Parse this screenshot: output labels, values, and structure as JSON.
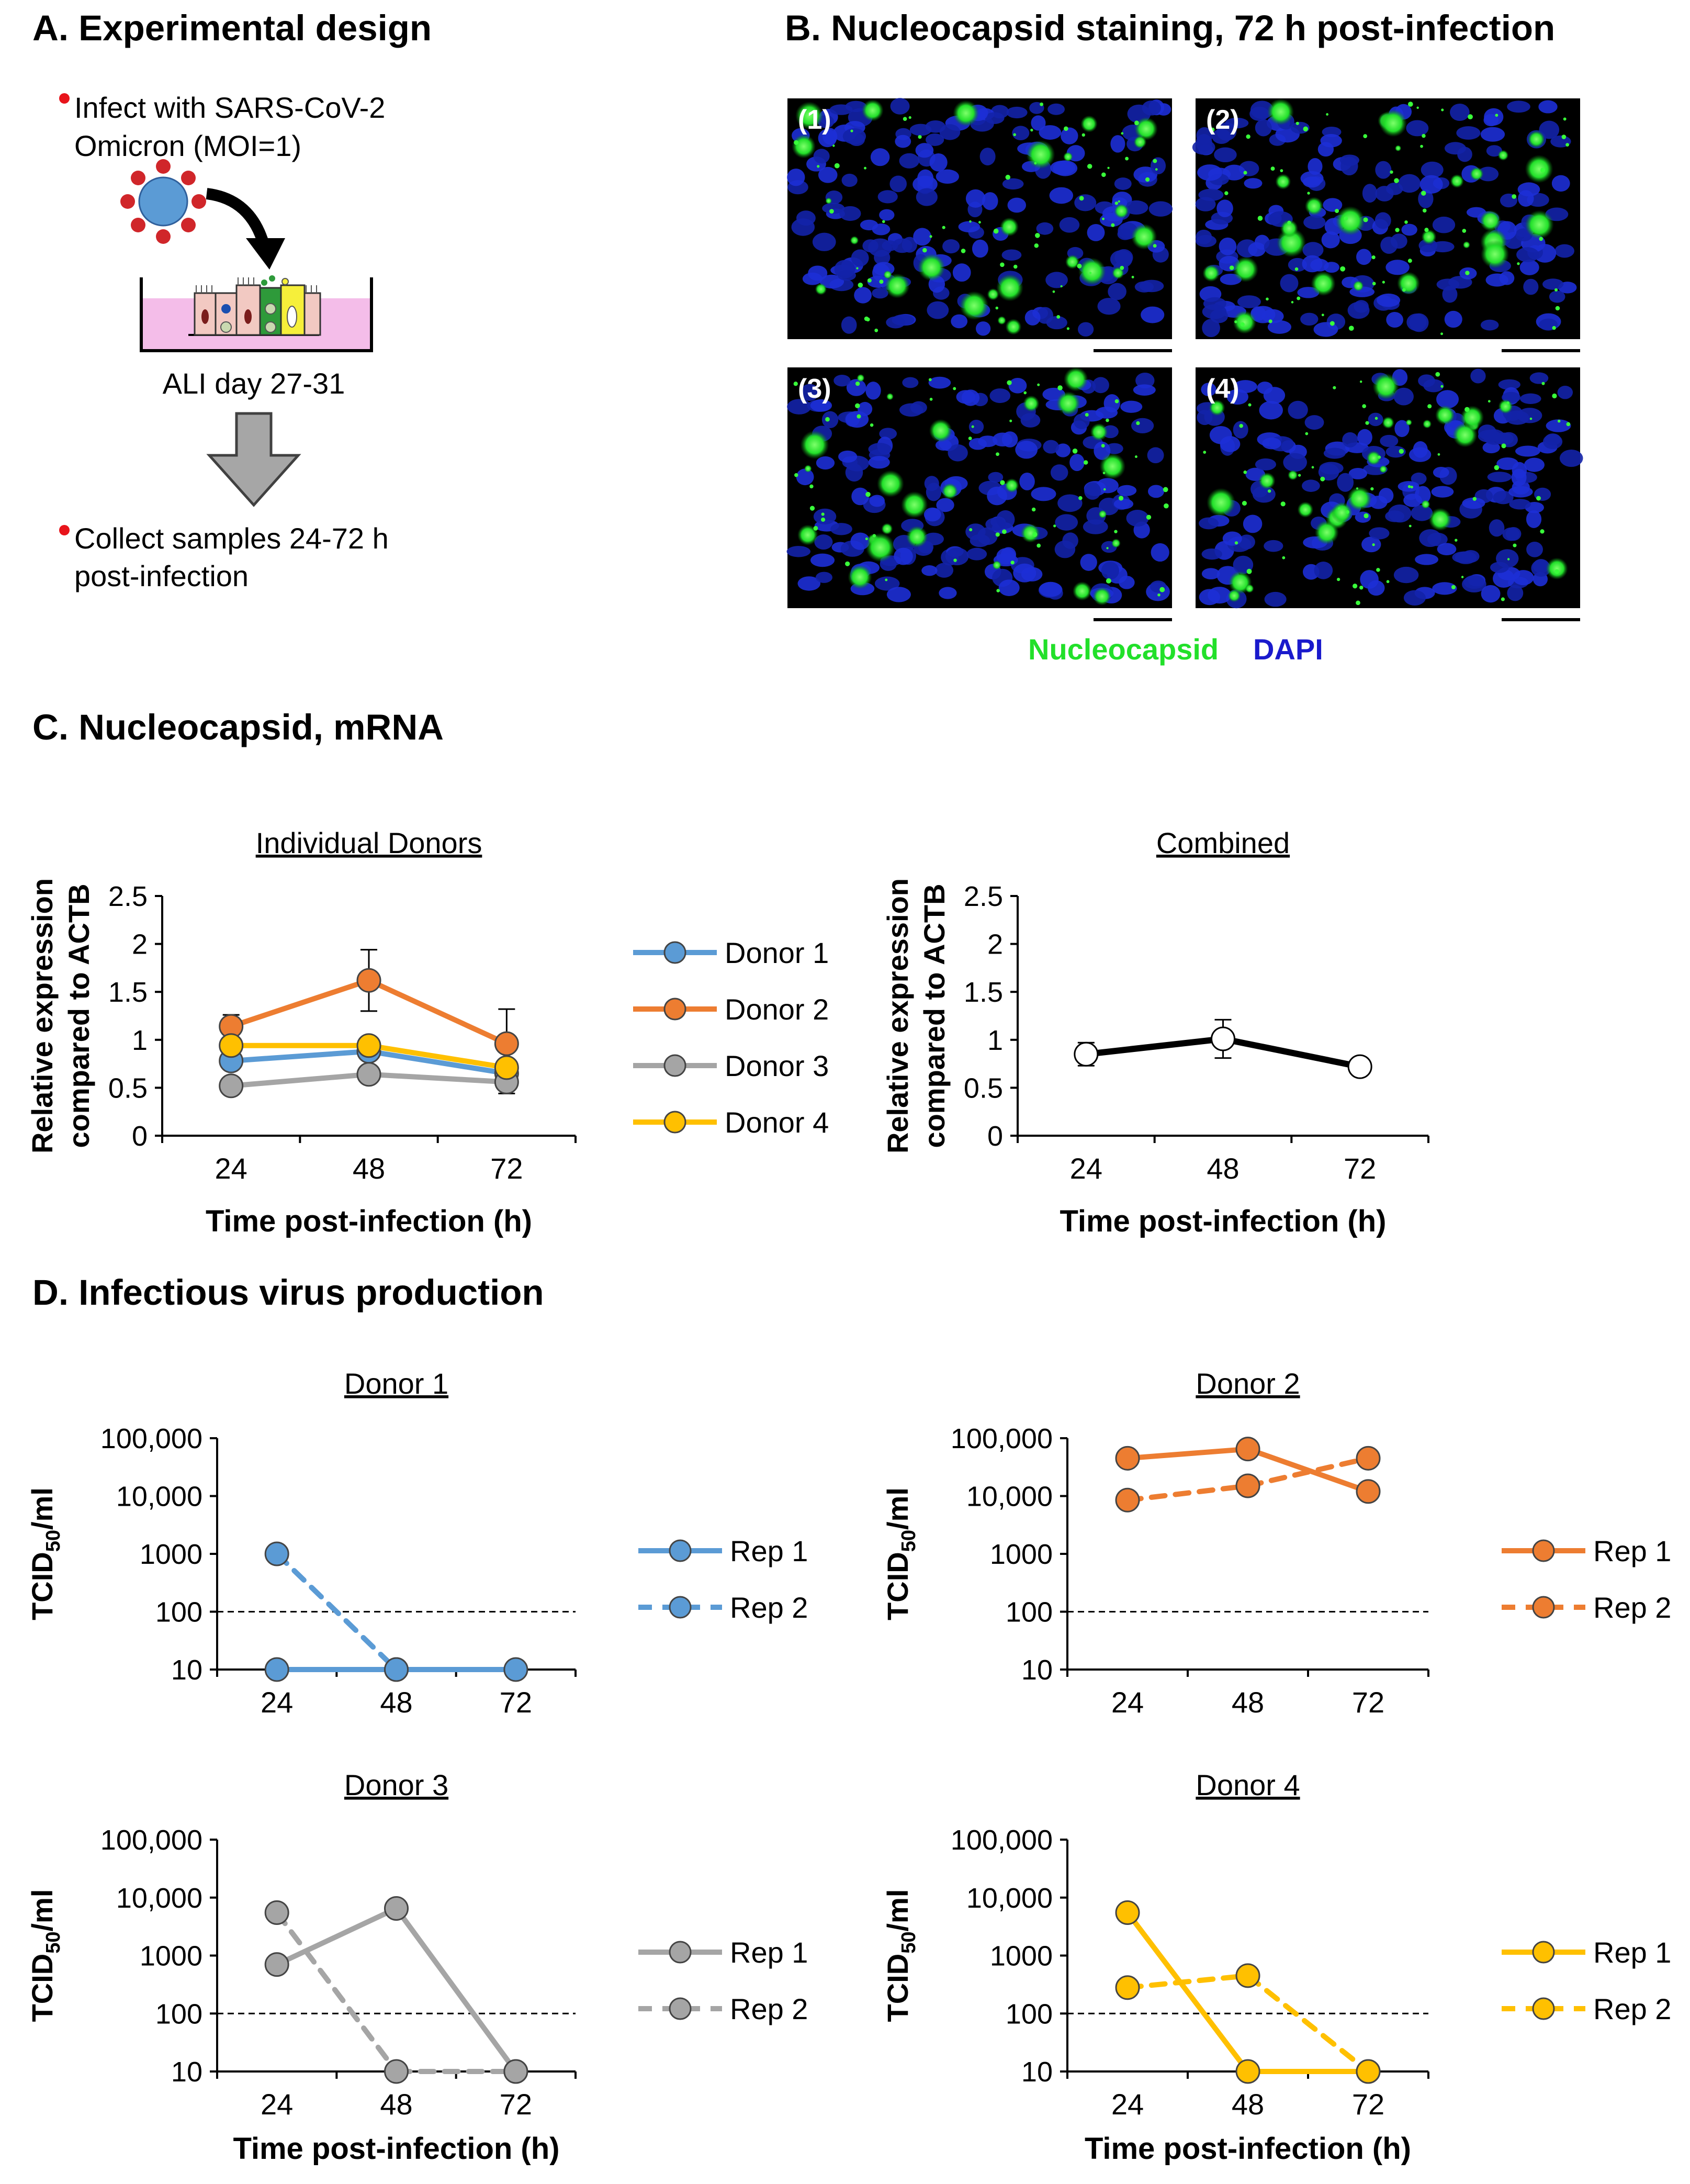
{
  "panels": {
    "a_title": "A. Experimental design",
    "b_title": "B. Nucleocapsid staining, 72 h post-infection",
    "c_title": "C. Nucleocapsid, mRNA",
    "d_title": "D. Infectious virus production"
  },
  "design": {
    "step1_line1": "Infect with SARS-CoV-2",
    "step1_line2": "Omicron (MOI=1)",
    "culture_label": "ALI day 27-31",
    "step2_line1": "Collect samples 24-72 h",
    "step2_line2": "post-infection",
    "bullet_color": "#e8141b"
  },
  "staining": {
    "panels": [
      "(1)",
      "(2)",
      "(3)",
      "(4)"
    ],
    "legend_green": "Nucleocapsid",
    "legend_blue": "DAPI",
    "green_color": "#22e02a",
    "blue_color": "#1a1acc"
  },
  "chart_data": [
    {
      "id": "c-individual",
      "type": "line",
      "title": "Individual Donors",
      "xlabel": "Time post-infection (h)",
      "ylabel_line1": "Relative expression",
      "ylabel_line2": "compared to ACTB",
      "categories": [
        "24",
        "48",
        "72"
      ],
      "ylim": [
        0,
        2.5
      ],
      "yticks": [
        "0",
        "0.5",
        "1",
        "1.5",
        "2",
        "2.5"
      ],
      "series": [
        {
          "name": "Donor 1",
          "color": "#5b9bd5",
          "values": [
            0.78,
            0.88,
            0.65
          ],
          "err": [
            0.05,
            0.05,
            0.05
          ]
        },
        {
          "name": "Donor 2",
          "color": "#ed7d31",
          "values": [
            1.14,
            1.62,
            0.96
          ],
          "err": [
            0.12,
            0.32,
            0.36
          ]
        },
        {
          "name": "Donor 3",
          "color": "#a5a5a5",
          "values": [
            0.52,
            0.64,
            0.56
          ],
          "err": [
            0.04,
            0.05,
            0.12
          ]
        },
        {
          "name": "Donor 4",
          "color": "#ffc000",
          "values": [
            0.94,
            0.94,
            0.71
          ],
          "err": [
            0.04,
            0.05,
            0.05
          ]
        }
      ]
    },
    {
      "id": "c-combined",
      "type": "line",
      "title": "Combined",
      "xlabel": "Time post-infection (h)",
      "ylabel_line1": "Relative expression",
      "ylabel_line2": "compared to ACTB",
      "categories": [
        "24",
        "48",
        "72"
      ],
      "ylim": [
        0,
        2.5
      ],
      "yticks": [
        "0",
        "0.5",
        "1",
        "1.5",
        "2",
        "2.5"
      ],
      "series": [
        {
          "name": "Combined",
          "color": "#000000",
          "values": [
            0.85,
            1.01,
            0.72
          ],
          "err": [
            0.12,
            0.2,
            0.02
          ]
        }
      ]
    },
    {
      "id": "d-donor1",
      "type": "line",
      "title": "Donor 1",
      "xlabel": "",
      "ylabel": "TCID50/ml",
      "categories": [
        "24",
        "48",
        "72"
      ],
      "yscale": "log",
      "yticks": [
        "10",
        "100",
        "1000",
        "10,000",
        "100,000"
      ],
      "threshold": 100,
      "series": [
        {
          "name": "Rep 1",
          "color": "#5b9bd5",
          "dashed": false,
          "values": [
            10,
            10,
            10
          ]
        },
        {
          "name": "Rep 2",
          "color": "#5b9bd5",
          "dashed": true,
          "values": [
            1000,
            10,
            null
          ]
        }
      ]
    },
    {
      "id": "d-donor2",
      "type": "line",
      "title": "Donor 2",
      "xlabel": "",
      "ylabel": "TCID50/ml",
      "categories": [
        "24",
        "48",
        "72"
      ],
      "yscale": "log",
      "yticks": [
        "10",
        "100",
        "1000",
        "10,000",
        "100,000"
      ],
      "threshold": 100,
      "series": [
        {
          "name": "Rep 1",
          "color": "#ed7d31",
          "dashed": false,
          "values": [
            45000,
            65000,
            12000
          ]
        },
        {
          "name": "Rep 2",
          "color": "#ed7d31",
          "dashed": true,
          "values": [
            8500,
            15000,
            45000
          ]
        }
      ]
    },
    {
      "id": "d-donor3",
      "type": "line",
      "title": "Donor 3",
      "xlabel": "Time post-infection (h)",
      "ylabel": "TCID50/ml",
      "categories": [
        "24",
        "48",
        "72"
      ],
      "yscale": "log",
      "yticks": [
        "10",
        "100",
        "1000",
        "10,000",
        "100,000"
      ],
      "threshold": 100,
      "series": [
        {
          "name": "Rep 1",
          "color": "#a5a5a5",
          "dashed": false,
          "values": [
            700,
            6500,
            10
          ]
        },
        {
          "name": "Rep 2",
          "color": "#a5a5a5",
          "dashed": true,
          "values": [
            5500,
            10,
            10
          ]
        }
      ]
    },
    {
      "id": "d-donor4",
      "type": "line",
      "title": "Donor 4",
      "xlabel": "Time post-infection (h)",
      "ylabel": "TCID50/ml",
      "categories": [
        "24",
        "48",
        "72"
      ],
      "yscale": "log",
      "yticks": [
        "10",
        "100",
        "1000",
        "10,000",
        "100,000"
      ],
      "threshold": 100,
      "series": [
        {
          "name": "Rep 1",
          "color": "#ffc000",
          "dashed": false,
          "values": [
            5500,
            10,
            10
          ]
        },
        {
          "name": "Rep 2",
          "color": "#ffc000",
          "dashed": true,
          "values": [
            280,
            450,
            10
          ]
        }
      ]
    }
  ]
}
